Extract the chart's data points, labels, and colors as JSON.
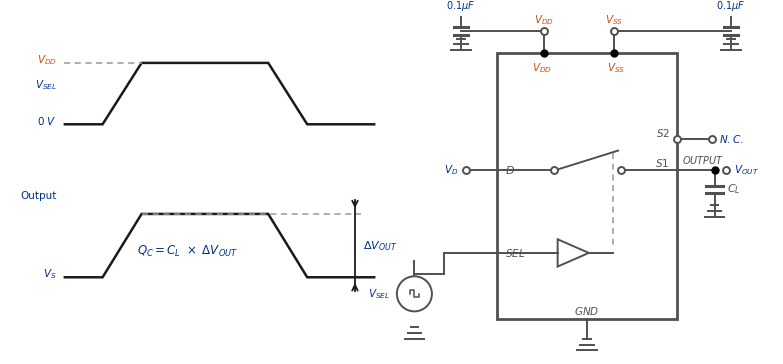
{
  "bg_color": "#ffffff",
  "lc": "#505050",
  "wc": "#1a1a1a",
  "dc": "#999999",
  "oc": "#c8500a",
  "bc": "#003087",
  "black": "#000000"
}
